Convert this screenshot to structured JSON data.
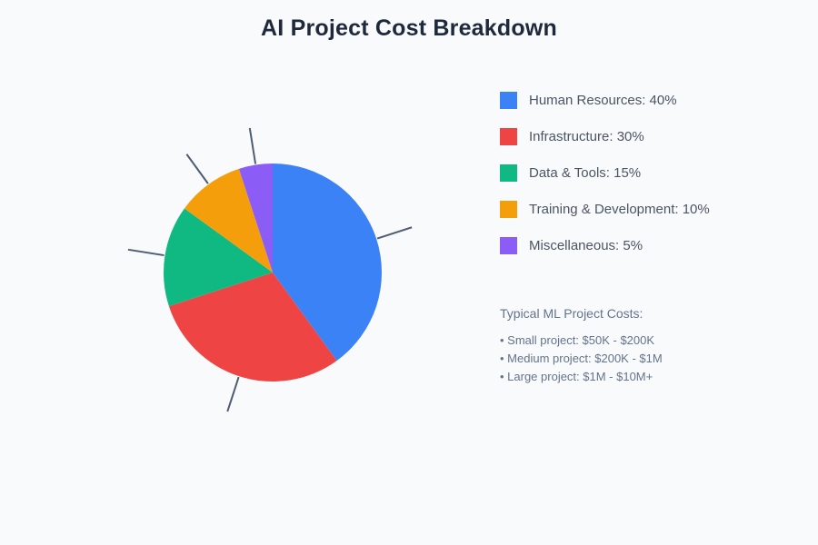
{
  "title": "AI Project Cost Breakdown",
  "colors": {
    "background": "#f8fafc",
    "title_text": "#1e293b",
    "legend_text": "#4b5563",
    "notes_text": "#64748b",
    "leader_line": "#4e5d72"
  },
  "chart_data": {
    "type": "pie",
    "title": "AI Project Cost Breakdown",
    "unit": "%",
    "direction": "clockwise",
    "start_angle_deg": 0,
    "legend_position": "right",
    "leader_lines": true,
    "slices": [
      {
        "label": "Human Resources",
        "value": 40,
        "color": "#3b82f6"
      },
      {
        "label": "Infrastructure",
        "value": 30,
        "color": "#ef4444"
      },
      {
        "label": "Data & Tools",
        "value": 15,
        "color": "#10b981"
      },
      {
        "label": "Training & Development",
        "value": 10,
        "color": "#f59e0b"
      },
      {
        "label": "Miscellaneous",
        "value": 5,
        "color": "#8b5cf6"
      }
    ],
    "legend_value_suffix": "%"
  },
  "notes": {
    "heading": "Typical ML Project Costs:",
    "items": [
      "• Small project: $50K - $200K",
      "• Medium project: $200K - $1M",
      "• Large project: $1M - $10M+"
    ]
  }
}
